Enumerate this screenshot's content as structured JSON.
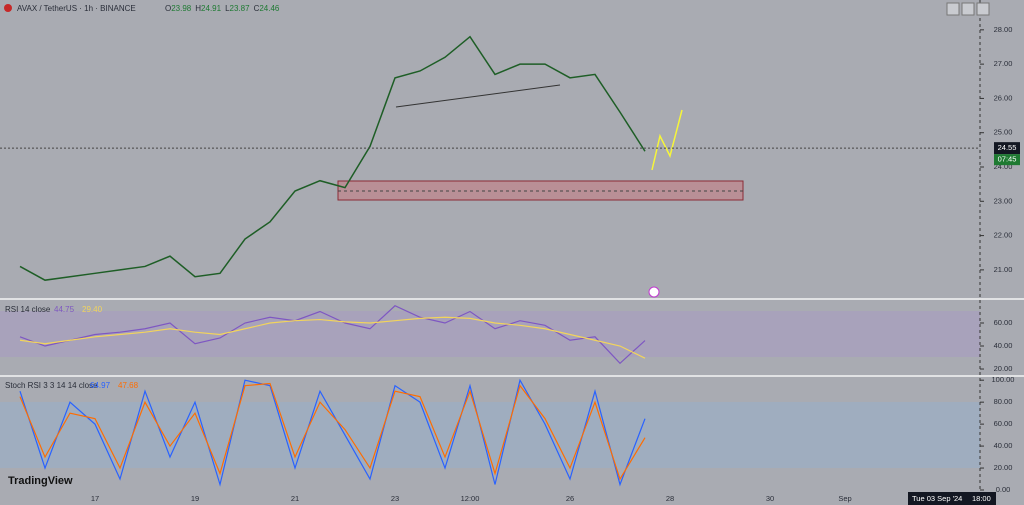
{
  "chart_data": [
    {
      "type": "line",
      "title": "AVAX / TetherUS · 1h · BINANCE",
      "color": "#1e5e26",
      "ohlc": [
        {
          "name": "O",
          "value": 23.98
        },
        {
          "name": "H",
          "value": 24.91
        },
        {
          "name": "L",
          "value": 23.87
        },
        {
          "name": "C",
          "value": 24.46
        }
      ],
      "categories": [
        null,
        null,
        null,
        "17",
        null,
        null,
        null,
        "19",
        null,
        null,
        null,
        "21",
        null,
        null,
        null,
        "23",
        null,
        null,
        "12:00",
        null,
        null,
        null,
        "26",
        null,
        null,
        null,
        "28",
        null,
        null,
        null,
        "30",
        null,
        null,
        "Sep",
        null,
        null,
        null,
        null
      ],
      "values": [
        21.1,
        20.7,
        20.8,
        20.9,
        21.0,
        21.1,
        21.4,
        20.8,
        20.9,
        21.9,
        22.4,
        23.3,
        23.6,
        23.4,
        24.6,
        26.6,
        26.8,
        27.2,
        27.8,
        26.7,
        27.0,
        27.0,
        26.6,
        26.7,
        25.6,
        24.46,
        null,
        null,
        null,
        null,
        null,
        null,
        null,
        null,
        null,
        null,
        null,
        null
      ],
      "last_price": 24.55,
      "countdown": "07:45",
      "ylim": [
        20.18,
        28.87
      ],
      "yticks": [
        {
          "value": 21,
          "label": "21.00"
        },
        {
          "value": 22,
          "label": "22.00"
        },
        {
          "value": 23,
          "label": "23.00"
        },
        {
          "value": 24,
          "label": "24.00"
        },
        {
          "value": 25,
          "label": "25.00"
        },
        {
          "value": 26,
          "label": "26.00"
        },
        {
          "value": 27,
          "label": "27.00"
        },
        {
          "value": 28,
          "label": "28.00"
        }
      ]
    },
    {
      "type": "line",
      "title": "RSI 14 close",
      "series": [
        {
          "name": "44.75",
          "color": "#7e57c2",
          "values": [
            48,
            40,
            45,
            50,
            52,
            55,
            60,
            42,
            47,
            60,
            65,
            62,
            70,
            60,
            55,
            75,
            65,
            60,
            70,
            55,
            62,
            58,
            45,
            48,
            25,
            44.75,
            null,
            null,
            null,
            null,
            null,
            null,
            null,
            null,
            null,
            null,
            null,
            null
          ]
        },
        {
          "name": "29.40",
          "color": "#f2d45c",
          "values": [
            45,
            42,
            45,
            48,
            50,
            52,
            55,
            52,
            50,
            55,
            60,
            62,
            63,
            61,
            60,
            62,
            64,
            65,
            64,
            60,
            58,
            55,
            50,
            45,
            40,
            29.4,
            null,
            null,
            null,
            null,
            null,
            null,
            null,
            null,
            null,
            null,
            null,
            null
          ]
        }
      ],
      "ylim": [
        14.8,
        80
      ],
      "yticks": [
        {
          "value": 20,
          "label": "20.00"
        },
        {
          "value": 40,
          "label": "40.00"
        },
        {
          "value": 60,
          "label": "60.00"
        }
      ]
    },
    {
      "type": "line",
      "title": "Stoch RSI 3 3 14 14 close",
      "series": [
        {
          "name": "64.97",
          "color": "#2962ff",
          "values": [
            90,
            20,
            80,
            60,
            10,
            90,
            30,
            80,
            5,
            100,
            95,
            20,
            90,
            50,
            10,
            95,
            80,
            20,
            95,
            5,
            100,
            60,
            10,
            90,
            5,
            64.97,
            null,
            null,
            null,
            null,
            null,
            null,
            null,
            null,
            null,
            null,
            null,
            null
          ]
        },
        {
          "name": "47.68",
          "color": "#ff6d00",
          "values": [
            85,
            30,
            70,
            65,
            20,
            80,
            40,
            70,
            15,
            95,
            97,
            30,
            80,
            55,
            20,
            90,
            85,
            30,
            90,
            15,
            95,
            65,
            20,
            80,
            10,
            47.68,
            null,
            null,
            null,
            null,
            null,
            null,
            null,
            null,
            null,
            null,
            null,
            null
          ]
        }
      ],
      "ylim": [
        0,
        102
      ],
      "yticks": [
        {
          "value": 0,
          "label": "0.00"
        },
        {
          "value": 20,
          "label": "20.00"
        },
        {
          "value": 40,
          "label": "40.00"
        },
        {
          "value": 60,
          "label": "60.00"
        },
        {
          "value": 80,
          "label": "80.00"
        },
        {
          "value": 100,
          "label": "100.00"
        }
      ]
    }
  ],
  "ui": {
    "logo": "TradingView",
    "crosshair_date": "Tue 03 Sep '24",
    "crosshair_time": "18:00"
  }
}
